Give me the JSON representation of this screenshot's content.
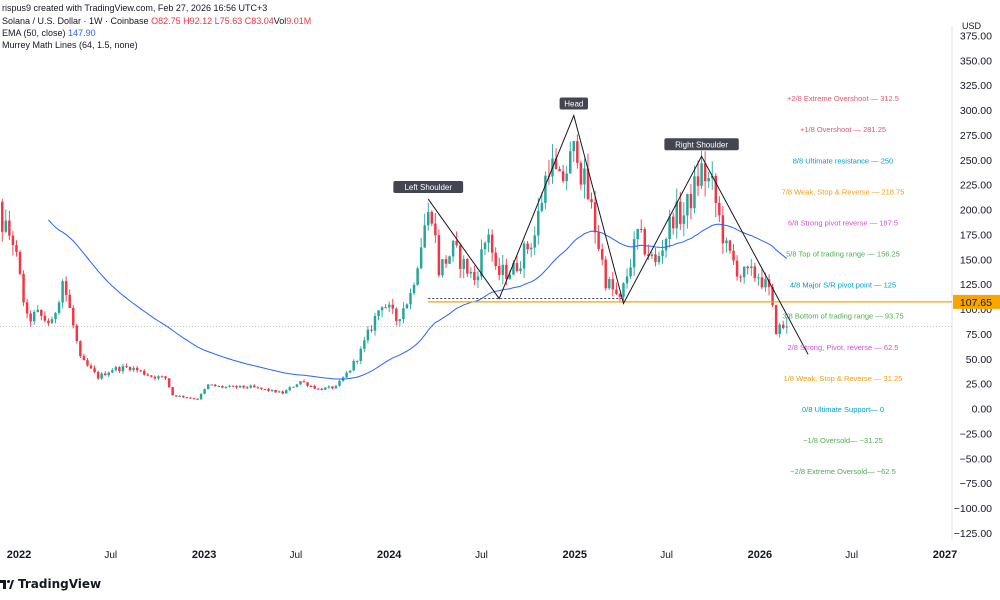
{
  "header": {
    "credit": "rispus9 created with TradingView.com, Feb 27, 2026 16:56 UTC+3",
    "symbol": "Solana / U.S. Dollar · 1W · Coinbase",
    "open": "O82.75",
    "high": "H92.12",
    "low": "L75.63",
    "close": "C83.04",
    "volume_label": "Vol",
    "volume": "9.01M",
    "ema_label": "EMA (50, close)",
    "ema_value": "147.90",
    "murrey_label": "Murrey Math Lines (64, 1.5, none)"
  },
  "footer": {
    "brand": "TradingView"
  },
  "colors": {
    "up": "#26a69a",
    "down": "#f23645",
    "ema": "#2962ff",
    "neckline": "#f7a600",
    "pattern": "#131722"
  },
  "chart_data": {
    "type": "candlestick",
    "currency": "USD",
    "y_ticks": [
      "375.00",
      "350.00",
      "325.00",
      "300.00",
      "275.00",
      "250.00",
      "225.00",
      "200.00",
      "175.00",
      "150.00",
      "125.00",
      "100.00",
      "75.00",
      "50.00",
      "25.00",
      "0.00",
      "−25.00",
      "−50.00",
      "−75.00",
      "−100.00",
      "−125.00"
    ],
    "y_tick_values": [
      375,
      350,
      325,
      300,
      275,
      250,
      225,
      200,
      175,
      150,
      125,
      100,
      75,
      50,
      25,
      0,
      -25,
      -50,
      -75,
      -100,
      -125
    ],
    "x_ticks": [
      {
        "label": "2022",
        "date": "2022-01-01",
        "bold": true
      },
      {
        "label": "Jul",
        "date": "2022-07-01",
        "bold": false
      },
      {
        "label": "2023",
        "date": "2023-01-01",
        "bold": true
      },
      {
        "label": "Jul",
        "date": "2023-07-01",
        "bold": false
      },
      {
        "label": "2024",
        "date": "2024-01-01",
        "bold": true
      },
      {
        "label": "Jul",
        "date": "2024-07-01",
        "bold": false
      },
      {
        "label": "2025",
        "date": "2025-01-01",
        "bold": true
      },
      {
        "label": "Jul",
        "date": "2025-07-01",
        "bold": false
      },
      {
        "label": "2026",
        "date": "2026-01-01",
        "bold": true
      },
      {
        "label": "Jul",
        "date": "2026-07-01",
        "bold": false
      },
      {
        "label": "2027",
        "date": "2027-01-01",
        "bold": true
      }
    ],
    "price_path": [
      [
        "2021-10-25",
        235
      ],
      [
        "2021-11-08",
        245
      ],
      [
        "2021-12-06",
        185
      ],
      [
        "2021-12-27",
        170
      ],
      [
        "2022-01-24",
        90
      ],
      [
        "2022-02-14",
        95
      ],
      [
        "2022-03-14",
        85
      ],
      [
        "2022-04-04",
        130
      ],
      [
        "2022-04-18",
        100
      ],
      [
        "2022-05-09",
        50
      ],
      [
        "2022-06-13",
        32
      ],
      [
        "2022-07-11",
        40
      ],
      [
        "2022-08-15",
        42
      ],
      [
        "2022-09-26",
        33
      ],
      [
        "2022-10-24",
        31
      ],
      [
        "2022-11-07",
        14
      ],
      [
        "2022-12-26",
        10
      ],
      [
        "2023-01-16",
        24
      ],
      [
        "2023-02-13",
        22
      ],
      [
        "2023-04-10",
        22
      ],
      [
        "2023-06-12",
        16
      ],
      [
        "2023-07-17",
        28
      ],
      [
        "2023-08-21",
        20
      ],
      [
        "2023-09-25",
        22
      ],
      [
        "2023-10-23",
        40
      ],
      [
        "2023-11-13",
        58
      ],
      [
        "2023-12-25",
        108
      ],
      [
        "2024-01-22",
        90
      ],
      [
        "2024-02-19",
        115
      ],
      [
        "2024-03-18",
        185
      ],
      [
        "2024-04-01",
        200
      ],
      [
        "2024-04-15",
        140
      ],
      [
        "2024-05-13",
        160
      ],
      [
        "2024-06-24",
        130
      ],
      [
        "2024-07-22",
        180
      ],
      [
        "2024-08-05",
        135
      ],
      [
        "2024-09-09",
        140
      ],
      [
        "2024-10-21",
        175
      ],
      [
        "2024-11-18",
        250
      ],
      [
        "2024-12-09",
        225
      ],
      [
        "2025-01-13",
        265
      ],
      [
        "2025-01-20",
        240
      ],
      [
        "2025-02-10",
        200
      ],
      [
        "2025-03-10",
        130
      ],
      [
        "2025-04-07",
        108
      ],
      [
        "2025-05-12",
        175
      ],
      [
        "2025-06-16",
        145
      ],
      [
        "2025-07-21",
        195
      ],
      [
        "2025-08-11",
        195
      ],
      [
        "2025-09-15",
        240
      ],
      [
        "2025-10-06",
        222
      ],
      [
        "2025-11-03",
        160
      ],
      [
        "2025-12-01",
        135
      ],
      [
        "2026-01-05",
        135
      ],
      [
        "2026-01-26",
        118
      ],
      [
        "2026-02-09",
        80
      ],
      [
        "2026-02-23",
        83
      ]
    ],
    "ema_label_value": 147.9,
    "last_price_label": "107.65",
    "neckline": {
      "from": [
        "2024-03-18",
        107.65
      ],
      "to": [
        "2026-03-01",
        107.65
      ]
    },
    "pattern": {
      "points": [
        [
          "2024-03-18",
          211
        ],
        [
          "2024-08-05",
          111
        ],
        [
          "2024-12-30",
          295
        ],
        [
          "2025-04-07",
          106
        ],
        [
          "2025-09-08",
          254
        ],
        [
          "2026-04-06",
          55
        ]
      ],
      "labels": [
        {
          "text": "Left Shoulder",
          "date": "2024-03-18",
          "value": 211
        },
        {
          "text": "Head",
          "date": "2024-12-30",
          "value": 295
        },
        {
          "text": "Right Shoulder",
          "date": "2025-09-08",
          "value": 254
        }
      ]
    },
    "murrey_lines": [
      {
        "label": "+2/8 Extreme Overshoot —  312.5",
        "value": 312.5,
        "color": "#e05a6d"
      },
      {
        "label": "+1/8 Overshoot —  281.25",
        "value": 281.25,
        "color": "#e05a6d"
      },
      {
        "label": "8/8 Ultimate resistance —  250",
        "value": 250,
        "color": "#00a0c6"
      },
      {
        "label": "7/8 Weak, Stop & Reverse —  218.75",
        "value": 218.75,
        "color": "#f39c12"
      },
      {
        "label": "6/8 Strong pivot reverse —  187.5",
        "value": 187.5,
        "color": "#d14fd0"
      },
      {
        "label": "5/8 Top of trading range —  156.25",
        "value": 156.25,
        "color": "#4caf50"
      },
      {
        "label": "4/8 Major S/R pivot point —  125",
        "value": 125,
        "color": "#00a0c6"
      },
      {
        "label": "3/8 Bottom of trading range —  93.75",
        "value": 93.75,
        "color": "#4caf50"
      },
      {
        "label": "2/8 Strong, Pivot, reverse —  62.5",
        "value": 62.5,
        "color": "#d14fd0"
      },
      {
        "label": "1/8 Weak, Stop & Reverse —  31.25",
        "value": 31.25,
        "color": "#f39c12"
      },
      {
        "label": "0/8 Ultimate Support—  0",
        "value": 0,
        "color": "#00a0c6"
      },
      {
        "label": "−1/8 Oversold—  −31.25",
        "value": -31.25,
        "color": "#4caf50"
      },
      {
        "label": "−2/8 Extreme Oversold—  −62.5",
        "value": -62.5,
        "color": "#4caf50"
      }
    ]
  }
}
